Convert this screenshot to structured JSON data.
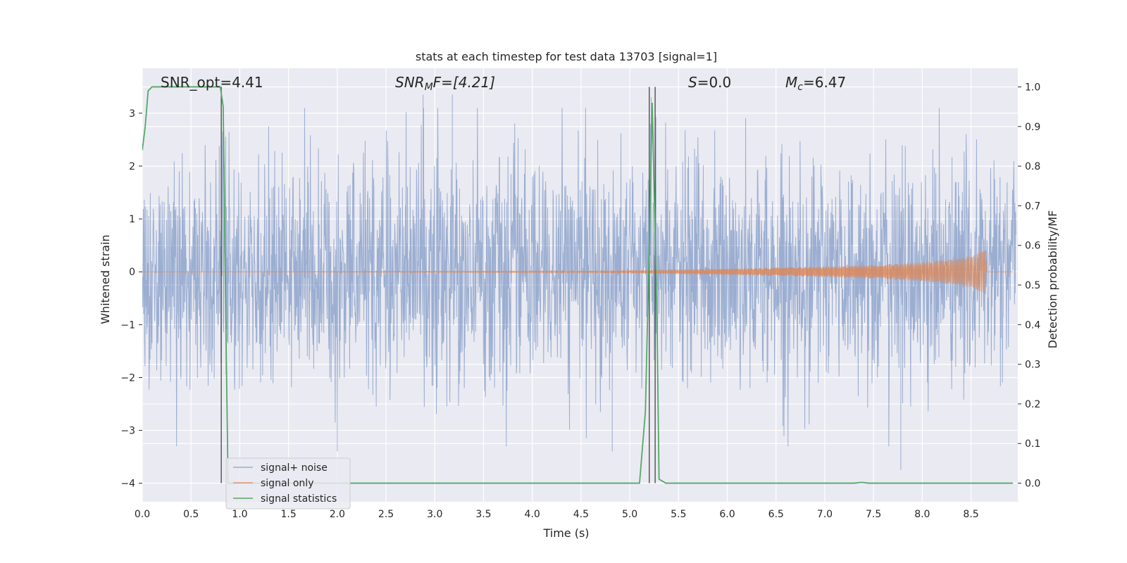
{
  "chart_data": {
    "type": "line",
    "title": "stats at each timestep for test data 13703 [signal=1]",
    "xlabel": "Time (s)",
    "ylabel_left": "Whitened strain",
    "ylabel_right": "Detection probability/MF",
    "xlim": [
      0.0,
      8.98
    ],
    "ylim_left": [
      -4.35,
      3.85
    ],
    "ylim_right": [
      -0.047,
      1.047
    ],
    "x_ticks": [
      "0.0",
      "0.5",
      "1.0",
      "1.5",
      "2.0",
      "2.5",
      "3.0",
      "3.5",
      "4.0",
      "4.5",
      "5.0",
      "5.5",
      "6.0",
      "6.5",
      "7.0",
      "7.5",
      "8.0",
      "8.5"
    ],
    "y_ticks_left": [
      "3",
      "2",
      "1",
      "0",
      "−1",
      "−2",
      "−3",
      "−4"
    ],
    "y_ticks_right": [
      "1.0",
      "0.9",
      "0.8",
      "0.7",
      "0.6",
      "0.5",
      "0.4",
      "0.3",
      "0.2",
      "0.1",
      "0.0"
    ],
    "grid": true,
    "legend_position": "lower-left",
    "annotations": {
      "snr_opt": "SNR_opt=4.41",
      "snr_mf_sym": "SNR",
      "snr_mf_sub": "M",
      "snr_mf_rest": "F=[4.21]",
      "s_sym": "S",
      "s_rest": "=0.0",
      "mc_sym": "M",
      "mc_sub": "c",
      "mc_rest": "=6.47"
    },
    "series": [
      {
        "name": "signal+ noise",
        "axis": "left",
        "color": "#4c72b0",
        "style": "dense noise trace, amplitude envelope roughly -3.7 to 3.4",
        "extreme_peaks": [
          [
            2.88,
            3.35
          ],
          [
            3.18,
            3.35
          ],
          [
            5.22,
            3.3
          ],
          [
            7.78,
            -3.75
          ],
          [
            2.0,
            -3.4
          ],
          [
            4.82,
            -3.4
          ]
        ]
      },
      {
        "name": "signal only",
        "axis": "left",
        "color": "#dd8452",
        "style": "chirp, near zero until ~4.3 s, grows to about ±0.45 at 8.65 s then drops to 0",
        "envelope": [
          [
            4.3,
            0.01
          ],
          [
            5.0,
            0.03
          ],
          [
            6.0,
            0.06
          ],
          [
            7.0,
            0.1
          ],
          [
            7.5,
            0.13
          ],
          [
            8.0,
            0.18
          ],
          [
            8.4,
            0.26
          ],
          [
            8.55,
            0.33
          ],
          [
            8.62,
            0.42
          ],
          [
            8.65,
            0.45
          ],
          [
            8.66,
            0.0
          ],
          [
            8.98,
            0.0
          ]
        ]
      },
      {
        "name": "signal statistics",
        "axis": "right",
        "color": "#55a868",
        "values": [
          [
            0.0,
            0.84
          ],
          [
            0.03,
            0.9
          ],
          [
            0.06,
            0.99
          ],
          [
            0.1,
            1.0
          ],
          [
            0.8,
            1.0
          ],
          [
            0.83,
            0.95
          ],
          [
            0.86,
            0.35
          ],
          [
            0.88,
            0.0
          ],
          [
            5.1,
            0.0
          ],
          [
            5.16,
            0.18
          ],
          [
            5.2,
            0.6
          ],
          [
            5.23,
            0.96
          ],
          [
            5.28,
            0.4
          ],
          [
            5.3,
            0.01
          ],
          [
            5.37,
            0.0
          ],
          [
            7.3,
            0.0
          ],
          [
            7.38,
            0.002
          ],
          [
            7.45,
            0.0
          ],
          [
            8.93,
            0.0
          ]
        ]
      }
    ],
    "vertical_lines": [
      {
        "x": 0.81,
        "y_from": 0.0,
        "y_to": 1.0
      },
      {
        "x": 5.2,
        "y_from": 0.0,
        "y_to": 1.0
      },
      {
        "x": 5.26,
        "y_from": 0.0,
        "y_to": 1.0
      }
    ]
  }
}
